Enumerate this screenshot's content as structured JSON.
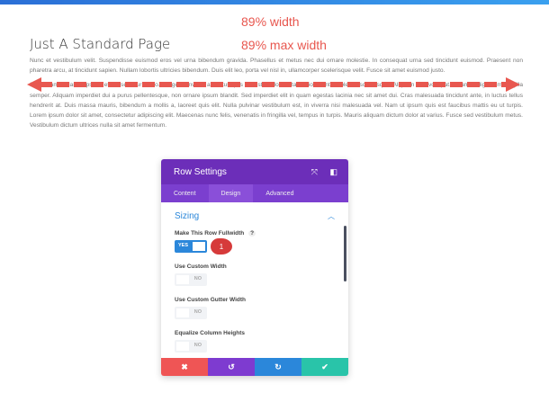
{
  "page": {
    "title": "Just A Standard Page",
    "label_width": "89% width",
    "label_max_width": "89% max width",
    "para1": "Nunc et vestibulum velit. Suspendisse euismod eros vel urna bibendum gravida. Phasellus et metus nec dui ornare molestie. In consequat urna sed tincidunt euismod. Praesent non pharetra arcu, at tincidunt sapien. Nullam lobortis ultricies bibendum. Duis elit leo, porta vel nisl in, ullamcorper scelerisque velit. Fusce sit amet euismod justo.",
    "para2": "Sed sit amet blandit ipsum, et consectetur libero. Integer convallis at metus quis molestie. Morbi vitae odio ut ante molestie scelerisque. Aliquam erat volutpat. Vivamus dignissim fringilla semper. Aliquam imperdiet dui a purus pellentesque, non ornare ipsum blandit. Sed imperdiet elit in quam egestas lacinia nec sit amet dui. Cras malesuada tincidunt ante, in luctus tellus hendrerit at. Duis massa mauris, bibendum a mollis a, laoreet quis elit. Nulla pulvinar vestibulum est, in viverra nisi malesuada vel. Nam ut ipsum quis est faucibus mattis eu ut turpis. Lorem ipsum dolor sit amet, consectetur adipiscing elit. Maecenas nunc felis, venenatis in fringilla vel, tempus in turpis. Mauris aliquam dictum dolor at varius. Fusce sed vestibulum metus. Vestibulum dictum ultrices nulla sit amet fermentum."
  },
  "modal": {
    "title": "Row Settings",
    "tabs": [
      "Content",
      "Design",
      "Advanced"
    ],
    "active_tab": "Design",
    "section": "Sizing",
    "fields": [
      {
        "label": "Make This Row Fullwidth",
        "value": "YES",
        "help": "?"
      },
      {
        "label": "Use Custom Width",
        "value": "NO"
      },
      {
        "label": "Use Custom Gutter Width",
        "value": "NO"
      },
      {
        "label": "Equalize Column Heights",
        "value": "NO"
      }
    ],
    "badge": "1",
    "footer_icons": [
      "close-icon",
      "undo-icon",
      "redo-icon",
      "check-icon"
    ],
    "colors": {
      "header": "#6c2eb9",
      "cancel": "#ef5555",
      "undo": "#7e3bd0",
      "redo": "#2b87da",
      "save": "#29c4a9",
      "annotation": "#e8574f"
    }
  }
}
